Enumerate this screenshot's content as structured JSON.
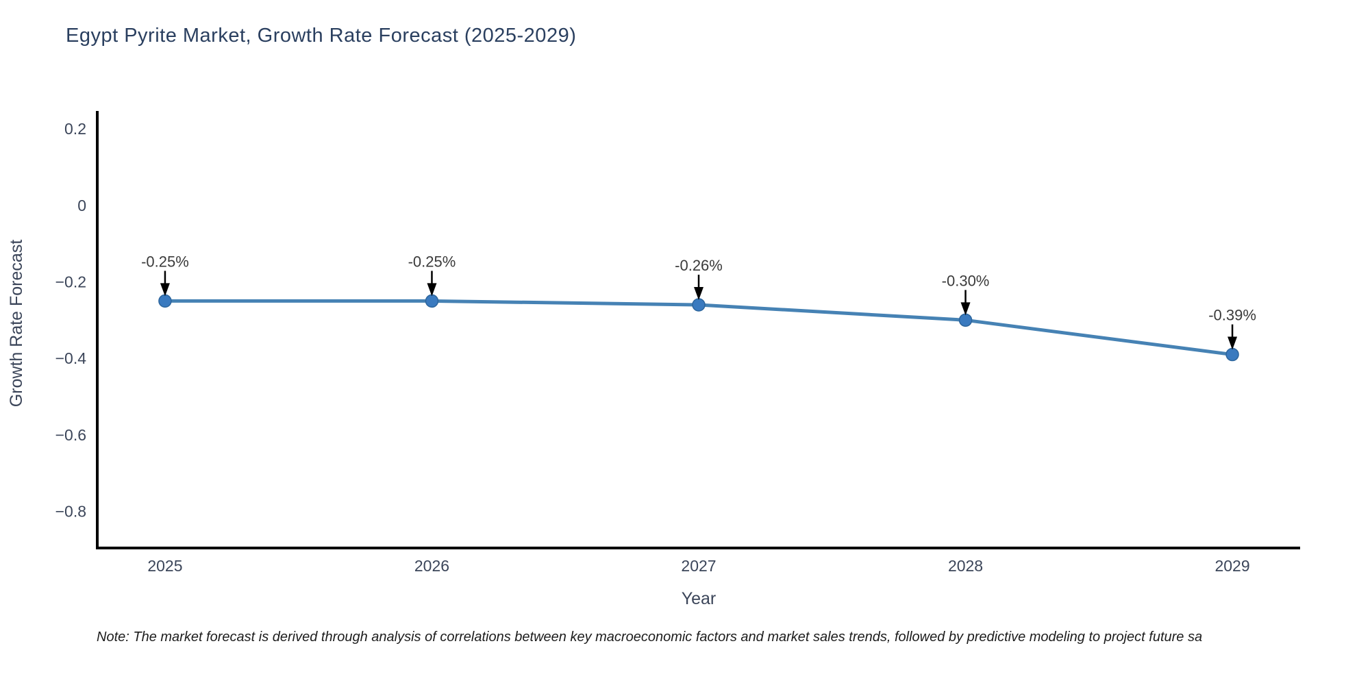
{
  "title": "Egypt Pyrite Market, Growth Rate Forecast (2025-2029)",
  "note": {
    "text": "Note: The market forecast is derived through analysis of correlations between key macroeconomic factors and market sales trends, followed by predictive modeling to project future sa"
  },
  "colors": {
    "title": "#2a3f5f",
    "tick_label": "#3b4559",
    "axis_label": "#3b4559",
    "annotation_text": "#3a3a3a",
    "annotation_arrow": "#000000",
    "axis_spine": "#000000",
    "line": "#4682b4",
    "marker": "#3a7abf",
    "marker_edge": "#2d659c",
    "background": "#ffffff"
  },
  "chart_data": {
    "type": "line",
    "title": "Egypt Pyrite Market, Growth Rate Forecast (2025-2029)",
    "x": [
      2025,
      2026,
      2027,
      2028,
      2029
    ],
    "y": [
      -0.25,
      -0.25,
      -0.26,
      -0.3,
      -0.39
    ],
    "series": [
      {
        "name": "Growth Rate Forecast",
        "values": [
          -0.25,
          -0.25,
          -0.26,
          -0.3,
          -0.39
        ]
      }
    ],
    "point_labels": [
      "-0.25%",
      "-0.25%",
      "-0.26%",
      "-0.30%",
      "-0.39%"
    ],
    "xlabel": "Year",
    "ylabel": "Growth Rate Forecast",
    "xtick_labels": [
      "2025",
      "2026",
      "2027",
      "2028",
      "2029"
    ],
    "yticks": [
      0.2,
      0,
      -0.2,
      -0.4,
      -0.6,
      -0.8
    ],
    "ytick_labels": [
      "0.2",
      "0",
      "−0.2",
      "−0.4",
      "−0.6",
      "−0.8"
    ],
    "xlim": [
      2024.746,
      2029.254
    ],
    "ylim": [
      -0.896,
      0.247
    ],
    "grid": false,
    "legend": null
  }
}
